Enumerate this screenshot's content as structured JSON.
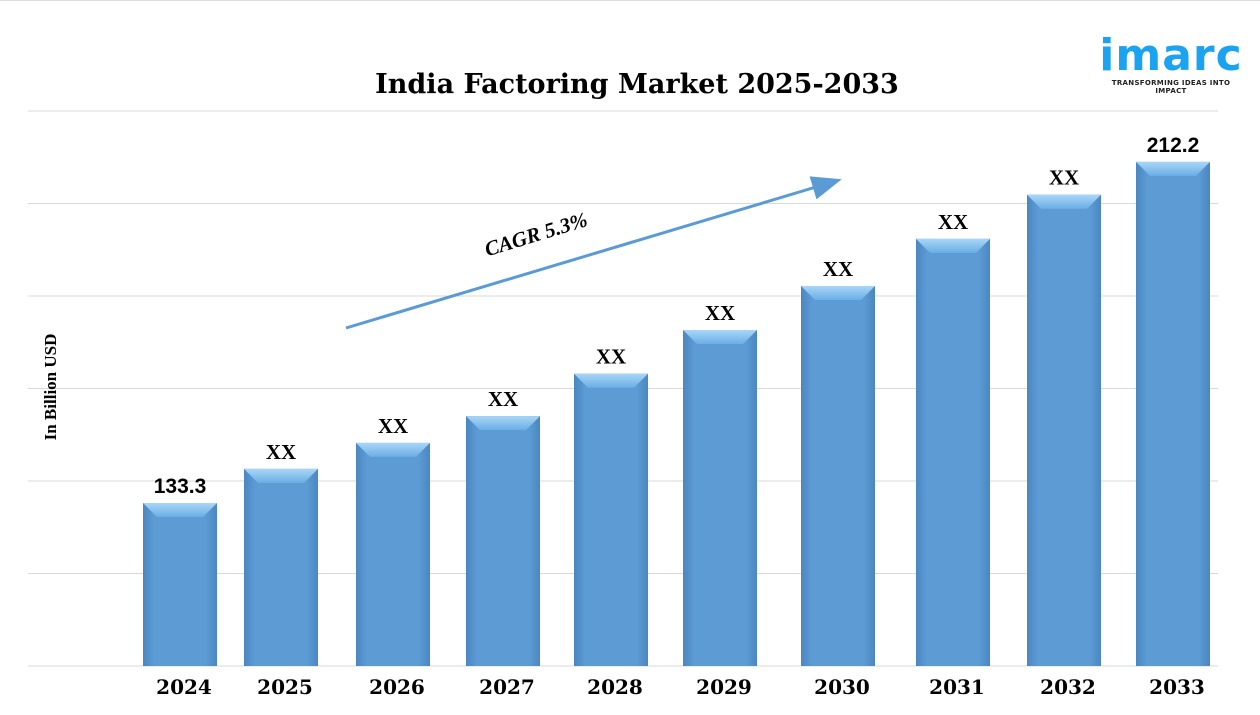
{
  "chart_data": {
    "type": "bar",
    "title": "India Factoring Market 2025-2033",
    "ylabel": "In Billion USD",
    "xlabel": "",
    "categories": [
      "2024",
      "2025",
      "2026",
      "2027",
      "2028",
      "2029",
      "2030",
      "2031",
      "2032",
      "2033"
    ],
    "values": [
      133.3,
      141.2,
      147.2,
      153.4,
      163.2,
      173.3,
      183.5,
      194.4,
      204.6,
      212.2
    ],
    "data_labels": [
      "133.3",
      "XX",
      "XX",
      "XX",
      "XX",
      "XX",
      "XX",
      "XX",
      "XX",
      "212.2"
    ],
    "ylim": [
      95.6,
      224
    ],
    "grid": true,
    "annotation": "CAGR 5.3%",
    "bar_color": "#5b9bd5"
  },
  "logo": {
    "word": "imarc",
    "tagline": "TRANSFORMING IDEAS INTO IMPACT",
    "color": "#1aa3f0"
  }
}
